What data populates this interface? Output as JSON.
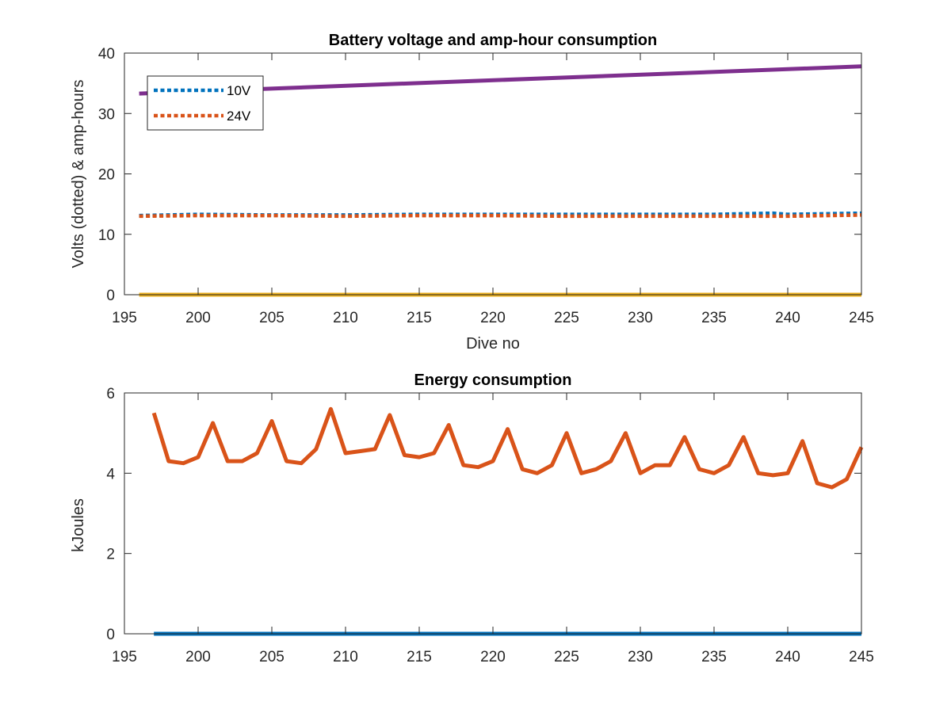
{
  "chart_data": [
    {
      "type": "line",
      "title": "Battery voltage and amp-hour consumption",
      "xlabel": "Dive no",
      "ylabel": "Volts (dotted) & amp-hours",
      "xlim": [
        195,
        245
      ],
      "ylim": [
        0,
        40
      ],
      "xticks": [
        195,
        200,
        205,
        210,
        215,
        220,
        225,
        230,
        235,
        240,
        245
      ],
      "yticks": [
        0,
        10,
        20,
        30,
        40
      ],
      "grid": false,
      "legend_position": "top-left",
      "series": [
        {
          "name": "10V",
          "style": "dotted",
          "color": "#0072BD",
          "x": [
            196,
            200,
            205,
            210,
            215,
            220,
            225,
            230,
            235,
            239,
            240,
            245
          ],
          "y": [
            13.1,
            13.3,
            13.2,
            13.2,
            13.3,
            13.3,
            13.3,
            13.3,
            13.3,
            13.5,
            13.3,
            13.5
          ]
        },
        {
          "name": "24V",
          "style": "dotted",
          "color": "#D95319",
          "x": [
            196,
            200,
            205,
            210,
            215,
            220,
            225,
            230,
            235,
            240,
            245
          ],
          "y": [
            13.0,
            13.1,
            13.1,
            13.0,
            13.1,
            13.1,
            13.0,
            13.0,
            13.0,
            13.0,
            13.2
          ]
        },
        {
          "style": "solid",
          "color": "#EDB120",
          "x": [
            196,
            245
          ],
          "y": [
            0,
            0
          ]
        },
        {
          "style": "solid",
          "color": "#7E2F8E",
          "x": [
            196,
            245
          ],
          "y": [
            33.3,
            37.8
          ]
        }
      ]
    },
    {
      "type": "line",
      "title": "Energy consumption",
      "xlabel": "",
      "ylabel": "kJoules",
      "xlim": [
        195,
        245
      ],
      "ylim": [
        0,
        6
      ],
      "xticks": [
        195,
        200,
        205,
        210,
        215,
        220,
        225,
        230,
        235,
        240,
        245
      ],
      "yticks": [
        0,
        2,
        4,
        6
      ],
      "grid": false,
      "series": [
        {
          "style": "solid",
          "color": "#D95319",
          "x": [
            197,
            198,
            199,
            200,
            201,
            202,
            203,
            204,
            205,
            206,
            207,
            208,
            209,
            210,
            211,
            212,
            213,
            214,
            215,
            216,
            217,
            218,
            219,
            220,
            221,
            222,
            223,
            224,
            225,
            226,
            227,
            228,
            229,
            230,
            231,
            232,
            233,
            234,
            235,
            236,
            237,
            238,
            239,
            240,
            241,
            242,
            243,
            244,
            245
          ],
          "y": [
            5.5,
            4.3,
            4.25,
            4.4,
            5.25,
            4.3,
            4.3,
            4.5,
            5.3,
            4.3,
            4.25,
            4.6,
            5.6,
            4.5,
            4.55,
            4.6,
            5.45,
            4.45,
            4.4,
            4.5,
            5.2,
            4.2,
            4.15,
            4.3,
            5.1,
            4.1,
            4.0,
            4.2,
            5.0,
            4.0,
            4.1,
            4.3,
            5.0,
            4.0,
            4.2,
            4.2,
            4.9,
            4.1,
            4.0,
            4.2,
            4.9,
            4.0,
            3.95,
            4.0,
            4.8,
            3.75,
            3.65,
            3.85,
            4.65
          ]
        },
        {
          "style": "solid",
          "color": "#0072BD",
          "x": [
            197,
            245
          ],
          "y": [
            0,
            0
          ]
        }
      ]
    }
  ]
}
